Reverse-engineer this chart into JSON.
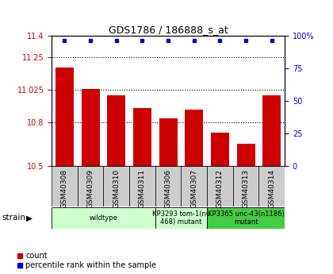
{
  "title": "GDS1786 / 186888_s_at",
  "samples": [
    "GSM40308",
    "GSM40309",
    "GSM40310",
    "GSM40311",
    "GSM40306",
    "GSM40307",
    "GSM40312",
    "GSM40313",
    "GSM40314"
  ],
  "bar_values": [
    11.18,
    11.03,
    10.99,
    10.9,
    10.83,
    10.89,
    10.73,
    10.65,
    10.99
  ],
  "percentile_values": [
    100,
    100,
    100,
    100,
    100,
    100,
    100,
    100,
    100
  ],
  "ylim_left": [
    10.5,
    11.4
  ],
  "ylim_right": [
    0,
    100
  ],
  "yticks_left": [
    10.5,
    10.8,
    11.025,
    11.25,
    11.4
  ],
  "ytick_labels_left": [
    "10.5",
    "10.8",
    "11.025",
    "11.25",
    "11.4"
  ],
  "yticks_right": [
    0,
    25,
    50,
    75,
    100
  ],
  "ytick_labels_right": [
    "0",
    "25",
    "50",
    "75",
    "100%"
  ],
  "bar_color": "#cc0000",
  "dot_color": "#0000cc",
  "group_spans": [
    {
      "start": 0,
      "end": 3,
      "color": "#ccffcc",
      "label": "wildtype"
    },
    {
      "start": 4,
      "end": 5,
      "color": "#ccffcc",
      "label": "KP3293 tom-1(nu\n468) mutant"
    },
    {
      "start": 6,
      "end": 8,
      "color": "#44cc44",
      "label": "KP3365 unc-43(n1186)\nmutant"
    }
  ],
  "strain_label": "strain",
  "legend_count_label": "count",
  "legend_percentile_label": "percentile rank within the sample",
  "tick_label_color_left": "#cc0000",
  "tick_label_color_right": "#0000cc",
  "sample_box_color": "#cccccc",
  "title_fontsize": 9
}
